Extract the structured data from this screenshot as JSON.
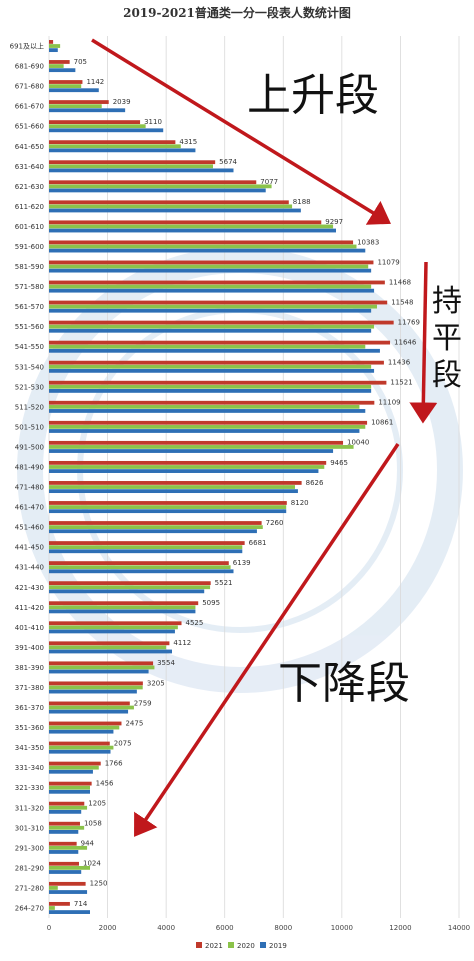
{
  "chart_data": {
    "type": "bar",
    "orientation": "horizontal",
    "title": "2019-2021普通类一分一段表人数统计图",
    "categories": [
      "691及以上",
      "681-690",
      "671-680",
      "661-670",
      "651-660",
      "641-650",
      "631-640",
      "621-630",
      "611-620",
      "601-610",
      "591-600",
      "581-590",
      "571-580",
      "561-570",
      "551-560",
      "541-550",
      "531-540",
      "521-530",
      "511-520",
      "501-510",
      "491-500",
      "481-490",
      "471-480",
      "461-470",
      "451-460",
      "441-450",
      "431-440",
      "421-430",
      "411-420",
      "401-410",
      "391-400",
      "381-390",
      "371-380",
      "361-370",
      "351-360",
      "341-350",
      "331-340",
      "321-330",
      "311-320",
      "301-310",
      "291-300",
      "281-290",
      "271-280",
      "264-270"
    ],
    "series": [
      {
        "name": "2021",
        "color": "#c0392b",
        "values": [
          140,
          705,
          1142,
          2039,
          3110,
          4315,
          5674,
          7077,
          8188,
          9297,
          10383,
          11079,
          11468,
          11548,
          11769,
          11646,
          11436,
          11521,
          11109,
          10861,
          10040,
          9465,
          8626,
          8120,
          7260,
          6681,
          6139,
          5521,
          5095,
          4525,
          4112,
          3554,
          3205,
          2759,
          2475,
          2075,
          1766,
          1456,
          1205,
          1058,
          944,
          1024,
          1250,
          714
        ]
      },
      {
        "name": "2020",
        "color": "#8bc34a",
        "values": [
          380,
          500,
          1100,
          1800,
          3300,
          4500,
          5600,
          7600,
          8300,
          9700,
          10500,
          10900,
          11000,
          11200,
          11100,
          10800,
          11000,
          11000,
          10600,
          10800,
          10400,
          9400,
          8400,
          8100,
          7300,
          6600,
          6200,
          5500,
          5000,
          4400,
          4000,
          3600,
          3200,
          2900,
          2400,
          2200,
          1700,
          1400,
          1300,
          1200,
          1300,
          1400,
          300,
          200
        ]
      },
      {
        "name": "2019",
        "color": "#2e6fb5",
        "values": [
          300,
          900,
          1700,
          2600,
          3900,
          5000,
          6300,
          7400,
          8600,
          9800,
          10800,
          11000,
          11100,
          11000,
          11000,
          11300,
          11100,
          11000,
          10800,
          10600,
          9700,
          9200,
          8500,
          8100,
          7100,
          6600,
          6300,
          5300,
          5000,
          4300,
          4200,
          3400,
          3000,
          2700,
          2200,
          2100,
          1500,
          1400,
          1100,
          1000,
          1000,
          1100,
          1300,
          1400
        ]
      }
    ],
    "data_labels": [
      null,
      "705",
      "1142",
      "2039",
      "3110",
      "4315",
      "5674",
      "7077",
      "8188",
      "9297",
      "10383",
      "11079",
      "11468",
      "11548",
      "11769",
      "11646",
      "11436",
      "11521",
      "11109",
      "10861",
      "10040",
      "9465",
      "8626",
      "8120",
      "7260",
      "6681",
      "6139",
      "5521",
      "5095",
      "4525",
      "4112",
      "3554",
      "3205",
      "2759",
      "2475",
      "2075",
      "1766",
      "1456",
      "1205",
      "1058",
      "944",
      "1024",
      "1250",
      "714"
    ],
    "xlim": [
      0,
      14000
    ],
    "x_ticks": [
      0,
      2000,
      4000,
      6000,
      8000,
      10000,
      12000,
      14000
    ],
    "grid": true,
    "legend": "bottom"
  },
  "annotations": {
    "rising": "上升段",
    "plateau": [
      "持",
      "平",
      "段"
    ],
    "falling": "下降段",
    "arrow_color": "#c0181c"
  }
}
